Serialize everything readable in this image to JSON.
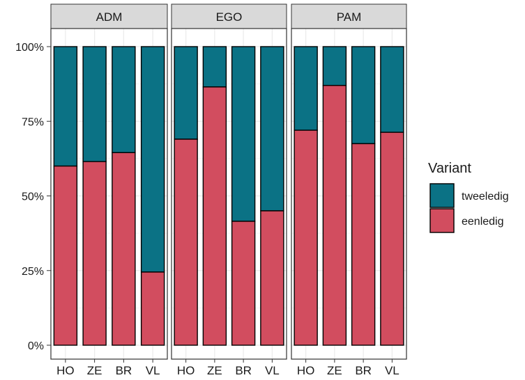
{
  "chart_data": {
    "type": "bar",
    "stacked": true,
    "normalized": true,
    "facets": [
      "ADM",
      "EGO",
      "PAM"
    ],
    "categories": [
      "HO",
      "ZE",
      "BR",
      "VL"
    ],
    "series": [
      {
        "name": "tweeledig",
        "color": "#0b7285",
        "values": {
          "ADM": [
            0.4,
            0.385,
            0.355,
            0.755
          ],
          "EGO": [
            0.31,
            0.135,
            0.585,
            0.55
          ],
          "PAM": [
            0.28,
            0.13,
            0.325,
            0.287
          ]
        }
      },
      {
        "name": "eenledig",
        "color": "#d24d5f",
        "values": {
          "ADM": [
            0.6,
            0.615,
            0.645,
            0.245
          ],
          "EGO": [
            0.69,
            0.865,
            0.415,
            0.45
          ],
          "PAM": [
            0.72,
            0.87,
            0.675,
            0.713
          ]
        }
      }
    ],
    "y_ticks": [
      "0%",
      "25%",
      "50%",
      "75%",
      "100%"
    ],
    "y_tick_values": [
      0,
      0.25,
      0.5,
      0.75,
      1.0
    ],
    "ylim": [
      0,
      1
    ],
    "xlabel": "",
    "ylabel": "",
    "legend": {
      "title": "Variant",
      "position": "right",
      "entries": [
        "tweeledig",
        "eenledig"
      ]
    },
    "grid": true,
    "theme": "bw"
  }
}
